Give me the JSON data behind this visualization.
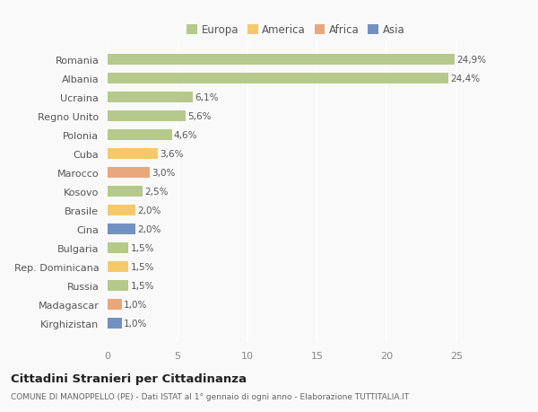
{
  "categories": [
    "Kirghizistan",
    "Madagascar",
    "Russia",
    "Rep. Dominicana",
    "Bulgaria",
    "Cina",
    "Brasile",
    "Kosovo",
    "Marocco",
    "Cuba",
    "Polonia",
    "Regno Unito",
    "Ucraina",
    "Albania",
    "Romania"
  ],
  "values": [
    1.0,
    1.0,
    1.5,
    1.5,
    1.5,
    2.0,
    2.0,
    2.5,
    3.0,
    3.6,
    4.6,
    5.6,
    6.1,
    24.4,
    24.9
  ],
  "labels": [
    "1,0%",
    "1,0%",
    "1,5%",
    "1,5%",
    "1,5%",
    "2,0%",
    "2,0%",
    "2,5%",
    "3,0%",
    "3,6%",
    "4,6%",
    "5,6%",
    "6,1%",
    "24,4%",
    "24,9%"
  ],
  "colors": [
    "#7191c0",
    "#e8a87c",
    "#b5c98a",
    "#f5c96a",
    "#b5c98a",
    "#7191c0",
    "#f5c96a",
    "#b5c98a",
    "#e8a87c",
    "#f5c96a",
    "#b5c98a",
    "#b5c98a",
    "#b5c98a",
    "#b5c98a",
    "#b5c98a"
  ],
  "legend_labels": [
    "Europa",
    "America",
    "Africa",
    "Asia"
  ],
  "legend_colors": [
    "#b5c98a",
    "#f5c96a",
    "#e8a87c",
    "#7191c0"
  ],
  "title": "Cittadini Stranieri per Cittadinanza",
  "subtitle": "COMUNE DI MANOPPELLO (PE) - Dati ISTAT al 1° gennaio di ogni anno - Elaborazione TUTTITALIA.IT",
  "xlim": [
    0,
    27
  ],
  "xticks": [
    0,
    5,
    10,
    15,
    20,
    25
  ],
  "bg_color": "#f9f9f9",
  "grid_color": "#ffffff",
  "bar_height": 0.55
}
